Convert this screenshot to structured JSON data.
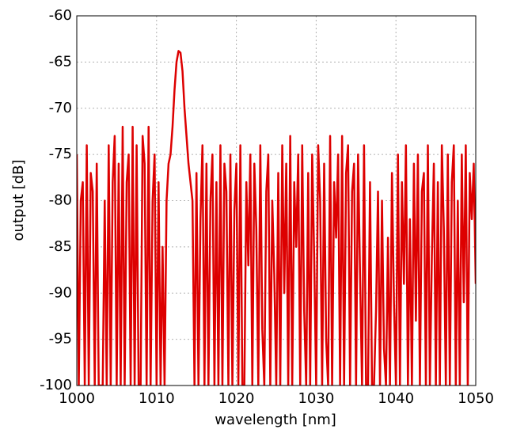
{
  "chart_data": {
    "type": "line",
    "xlabel": "wavelength [nm]",
    "ylabel": "output [dB]",
    "color": "#dd0000",
    "grid": true,
    "xlim": [
      1000,
      1050
    ],
    "xticks": [
      1000,
      1010,
      1020,
      1030,
      1040,
      1050
    ],
    "ylim": [
      -100,
      -60
    ],
    "yticks": [
      -60,
      -65,
      -70,
      -75,
      -80,
      -85,
      -90,
      -95,
      -100
    ],
    "x": [
      1000,
      1000.25,
      1000.5,
      1000.75,
      1001,
      1001.25,
      1001.5,
      1001.75,
      1002,
      1002.25,
      1002.5,
      1002.75,
      1003,
      1003.25,
      1003.5,
      1003.75,
      1004,
      1004.25,
      1004.5,
      1004.75,
      1005,
      1005.25,
      1005.5,
      1005.75,
      1006,
      1006.25,
      1006.5,
      1006.75,
      1007,
      1007.25,
      1007.5,
      1007.75,
      1008,
      1008.25,
      1008.5,
      1008.75,
      1009,
      1009.25,
      1009.5,
      1009.75,
      1010,
      1010.25,
      1010.5,
      1010.75,
      1011,
      1011.25,
      1011.5,
      1011.75,
      1012,
      1012.25,
      1012.5,
      1012.75,
      1013,
      1013.25,
      1013.5,
      1013.75,
      1014,
      1014.25,
      1014.5,
      1014.75,
      1015,
      1015.25,
      1015.5,
      1015.75,
      1016,
      1016.25,
      1016.5,
      1016.75,
      1017,
      1017.25,
      1017.5,
      1017.75,
      1018,
      1018.25,
      1018.5,
      1018.75,
      1019,
      1019.25,
      1019.5,
      1019.75,
      1020,
      1020.25,
      1020.5,
      1020.75,
      1021,
      1021.25,
      1021.5,
      1021.75,
      1022,
      1022.25,
      1022.5,
      1022.75,
      1023,
      1023.25,
      1023.5,
      1023.75,
      1024,
      1024.25,
      1024.5,
      1024.75,
      1025,
      1025.25,
      1025.5,
      1025.75,
      1026,
      1026.25,
      1026.5,
      1026.75,
      1027,
      1027.25,
      1027.5,
      1027.75,
      1028,
      1028.25,
      1028.5,
      1028.75,
      1029,
      1029.25,
      1029.5,
      1029.75,
      1030,
      1030.25,
      1030.5,
      1030.75,
      1031,
      1031.25,
      1031.5,
      1031.75,
      1032,
      1032.25,
      1032.5,
      1032.75,
      1033,
      1033.25,
      1033.5,
      1033.75,
      1034,
      1034.25,
      1034.5,
      1034.75,
      1035,
      1035.25,
      1035.5,
      1035.75,
      1036,
      1036.25,
      1036.5,
      1036.75,
      1037,
      1037.25,
      1037.5,
      1037.75,
      1038,
      1038.25,
      1038.5,
      1038.75,
      1039,
      1039.25,
      1039.5,
      1039.75,
      1040,
      1040.25,
      1040.5,
      1040.75,
      1041,
      1041.25,
      1041.5,
      1041.75,
      1042,
      1042.25,
      1042.5,
      1042.75,
      1043,
      1043.25,
      1043.5,
      1043.75,
      1044,
      1044.25,
      1044.5,
      1044.75,
      1045,
      1045.25,
      1045.5,
      1045.75,
      1046,
      1046.25,
      1046.5,
      1046.75,
      1047,
      1047.25,
      1047.5,
      1047.75,
      1048,
      1048.25,
      1048.5,
      1048.75,
      1049,
      1049.25,
      1049.5,
      1049.75,
      1050
    ],
    "values": [
      -75,
      -100,
      -80,
      -78,
      -100,
      -74,
      -100,
      -77,
      -79,
      -100,
      -76,
      -100,
      -100,
      -100,
      -80,
      -100,
      -74,
      -100,
      -78,
      -73,
      -100,
      -76,
      -100,
      -72,
      -100,
      -78,
      -75,
      -100,
      -72,
      -100,
      -74,
      -100,
      -100,
      -73,
      -76,
      -100,
      -72,
      -100,
      -80,
      -75,
      -100,
      -78,
      -100,
      -85,
      -100,
      -80,
      -76,
      -75,
      -72,
      -68,
      -65,
      -63.8,
      -64,
      -66,
      -70,
      -73,
      -76,
      -78,
      -80,
      -100,
      -77,
      -100,
      -82,
      -74,
      -100,
      -76,
      -100,
      -80,
      -75,
      -100,
      -78,
      -100,
      -74,
      -100,
      -76,
      -79,
      -100,
      -75,
      -100,
      -81,
      -76,
      -100,
      -74,
      -100,
      -100,
      -78,
      -87,
      -75,
      -100,
      -76,
      -83,
      -100,
      -74,
      -94,
      -100,
      -79,
      -75,
      -100,
      -80,
      -88,
      -100,
      -77,
      -100,
      -74,
      -90,
      -76,
      -100,
      -73,
      -100,
      -78,
      -85,
      -75,
      -100,
      -74,
      -92,
      -100,
      -77,
      -100,
      -75,
      -86,
      -100,
      -74,
      -80,
      -100,
      -76,
      -95,
      -100,
      -73,
      -100,
      -78,
      -84,
      -75,
      -100,
      -73,
      -100,
      -77,
      -74,
      -100,
      -79,
      -76,
      -100,
      -75,
      -88,
      -100,
      -74,
      -100,
      -100,
      -78,
      -100,
      -100,
      -92,
      -79,
      -100,
      -80,
      -96,
      -100,
      -84,
      -100,
      -77,
      -91,
      -100,
      -75,
      -100,
      -78,
      -89,
      -74,
      -100,
      -82,
      -100,
      -76,
      -93,
      -75,
      -100,
      -79,
      -77,
      -100,
      -74,
      -100,
      -86,
      -76,
      -100,
      -78,
      -100,
      -74,
      -83,
      -100,
      -75,
      -100,
      -78,
      -74,
      -100,
      -80,
      -100,
      -75,
      -91,
      -74,
      -100,
      -77,
      -82,
      -76,
      -89
    ]
  }
}
